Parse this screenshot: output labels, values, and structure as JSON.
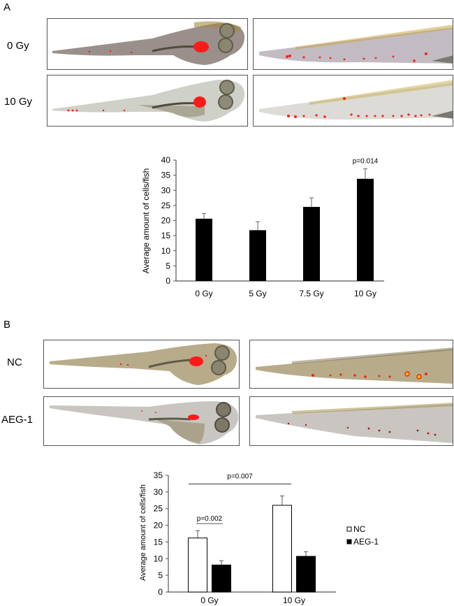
{
  "panel_a": {
    "letter": "A",
    "row_labels": [
      "0 Gy",
      "10 Gy"
    ]
  },
  "panel_b": {
    "letter": "B",
    "row_labels": [
      "NC",
      "AEG-1"
    ]
  },
  "colors": {
    "bar_fill": "#000000",
    "nc_fill": "#ffffff",
    "aeg1_fill": "#000000",
    "axis": "#555555",
    "red_signal": "#ff1a1a",
    "fish_body_a0": "#9a8f8a",
    "fish_body_a10": "#cfd0c8",
    "fish_body_nc": "#b8ab8a",
    "fish_body_aeg": "#c9c6c2"
  },
  "chart_data": [
    {
      "type": "bar",
      "title": "",
      "xlabel": "",
      "ylabel": "Average  amount of cells/fish",
      "categories": [
        "0 Gy",
        "5 Gy",
        "7.5 Gy",
        "10 Gy"
      ],
      "values": [
        20.6,
        16.8,
        24.5,
        33.8
      ],
      "errors": [
        1.7,
        2.8,
        3.0,
        3.3
      ],
      "ylim": [
        0,
        40
      ],
      "yticks": [
        0,
        5,
        10,
        15,
        20,
        25,
        30,
        35,
        40
      ],
      "annotations": [
        {
          "text": "p=0.014",
          "category": "10 Gy"
        }
      ],
      "grid": false,
      "legend": null
    },
    {
      "type": "bar",
      "title": "",
      "xlabel": "",
      "ylabel": "Average  amount of cells/fish",
      "categories": [
        "0 Gy",
        "10 Gy"
      ],
      "series": [
        {
          "name": "NC",
          "values": [
            16.2,
            26.0
          ],
          "errors": [
            2.2,
            2.8
          ]
        },
        {
          "name": "AEG-1",
          "values": [
            8.1,
            10.7
          ],
          "errors": [
            1.3,
            1.4
          ]
        }
      ],
      "ylim": [
        0,
        35
      ],
      "yticks": [
        0,
        5,
        10,
        15,
        20,
        25,
        30,
        35
      ],
      "annotations": [
        {
          "text": "p=0.002",
          "between": [
            "0 Gy NC",
            "0 Gy AEG-1"
          ]
        },
        {
          "text": "p=0.007",
          "between": [
            "0 Gy NC",
            "10 Gy NC"
          ]
        }
      ],
      "grid": false,
      "legend": "right"
    }
  ]
}
